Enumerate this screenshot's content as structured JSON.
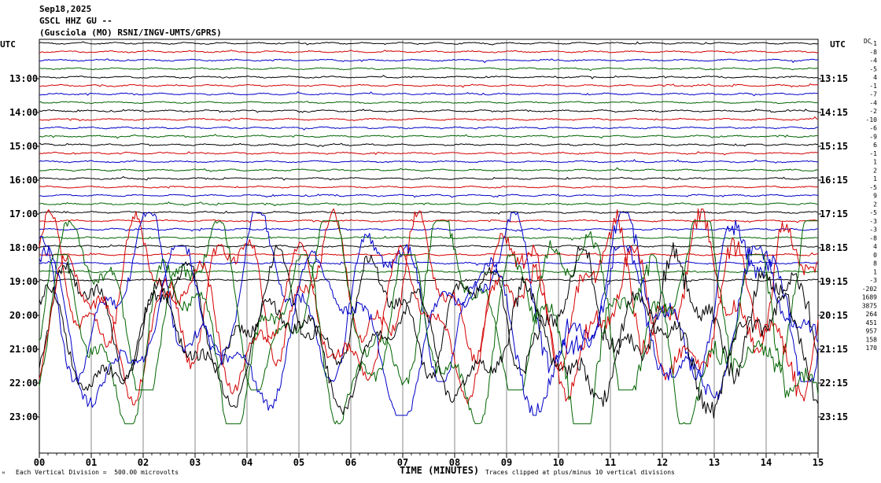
{
  "header": {
    "date": "Sep18,2025",
    "station": "GSCL HHZ GU --",
    "description": "(Gusciola (MO) RSNI/INGV-UMTS/GPRS)"
  },
  "footer": {
    "scale_note": "Each Vertical Division =  500.00 microvolts",
    "clip_note": "Traces clipped at plus/minus 10 vertical divisions",
    "corner_mark": "ᴹ"
  },
  "chart_data": {
    "type": "line",
    "title": "GSCL HHZ GU --",
    "xlabel": "TIME (MINUTES)",
    "xlim": [
      0,
      15
    ],
    "x_ticks": [
      "00",
      "01",
      "02",
      "03",
      "04",
      "05",
      "06",
      "07",
      "08",
      "09",
      "10",
      "11",
      "12",
      "13",
      "14",
      "15"
    ],
    "left_axis_label": "UTC",
    "right_axis_label": "UTC",
    "left_hour_labels": [
      "13:00",
      "14:00",
      "15:00",
      "16:00",
      "17:00",
      "18:00",
      "19:00",
      "20:00",
      "21:00",
      "22:00",
      "23:00"
    ],
    "right_hour_labels": [
      "13:15",
      "14:15",
      "15:15",
      "16:15",
      "17:15",
      "18:15",
      "19:15",
      "20:15",
      "21:15",
      "22:15",
      "23:15"
    ],
    "dc_label": "DC",
    "dc_offsets": [
      "-1",
      "-8",
      "-4",
      "-5",
      "4",
      "-1",
      "-7",
      "-4",
      "-2",
      "-10",
      "-6",
      "-9",
      "6",
      "-1",
      "1",
      "2",
      "1",
      "-5",
      "9",
      "2",
      "-5",
      "-3",
      "-3",
      "-8",
      "4",
      "0",
      "8",
      "1",
      "-3",
      "-202",
      "1689",
      "3875",
      "264",
      "451",
      "957",
      "158",
      "170"
    ],
    "trace_colors": [
      "#000000",
      "#d40000",
      "#0000c8",
      "#006400"
    ],
    "trace_count": 37,
    "first_trace_start_utc": "12:00",
    "minutes_per_trace": 15,
    "clip_divisions": 10,
    "division_microvolts": 500.0,
    "quiet_trace_count": 29,
    "noisy_trace_note": "Traces from about 19:00 onward are high-amplitude and clipped",
    "grid": true
  }
}
